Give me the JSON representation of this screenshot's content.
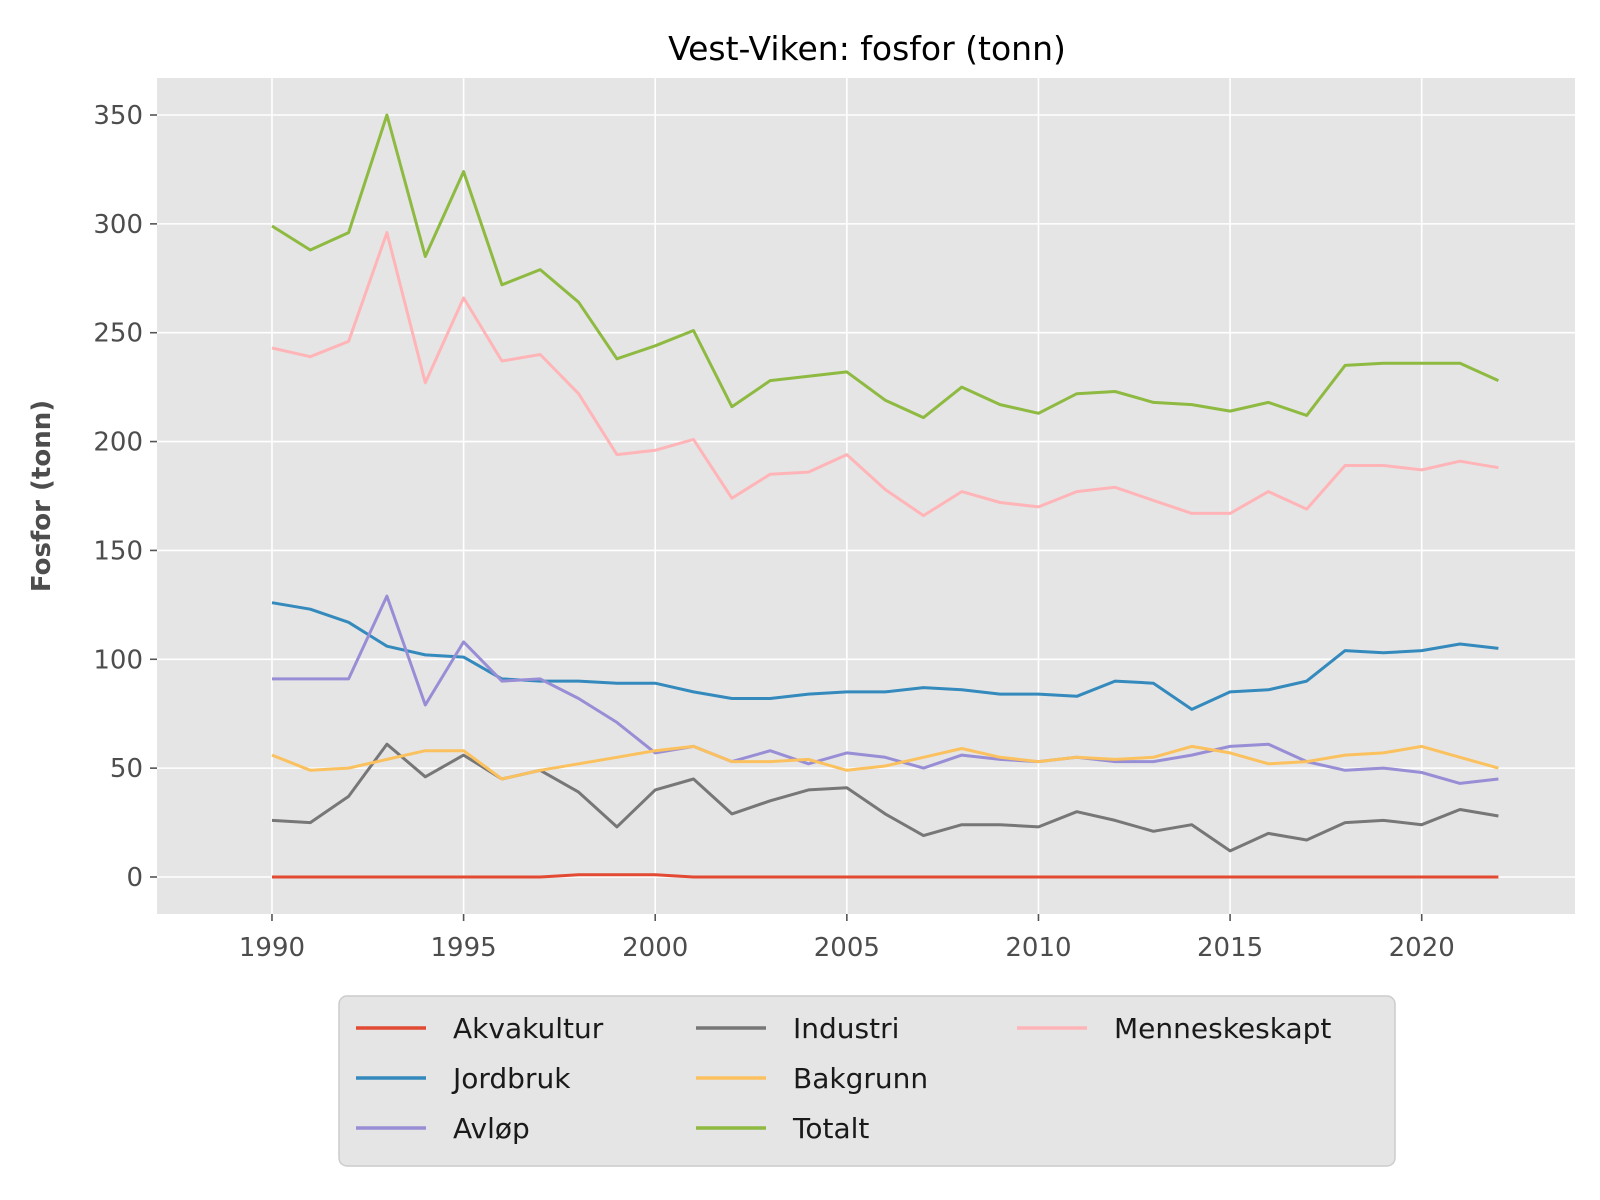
{
  "chart_data": {
    "type": "line",
    "title": "Vest-Viken: fosfor (tonn)",
    "xlabel": "",
    "ylabel": "Fosfor (tonn)",
    "xlim": [
      1987,
      2024
    ],
    "ylim": [
      -17,
      367
    ],
    "xticks": [
      1990,
      1995,
      2000,
      2005,
      2010,
      2015,
      2020
    ],
    "yticks": [
      0,
      50,
      100,
      150,
      200,
      250,
      300,
      350
    ],
    "grid": true,
    "legend_position": "bottom-center, outside plot, 3 columns",
    "x": [
      1990,
      1991,
      1992,
      1993,
      1994,
      1995,
      1996,
      1997,
      1998,
      1999,
      2000,
      2001,
      2002,
      2003,
      2004,
      2005,
      2006,
      2007,
      2008,
      2009,
      2010,
      2011,
      2012,
      2013,
      2014,
      2015,
      2016,
      2017,
      2018,
      2019,
      2020,
      2021,
      2022
    ],
    "series": [
      {
        "name": "Akvakultur",
        "color": "#E24A33",
        "values": [
          0,
          0,
          0,
          0,
          0,
          0,
          0,
          0,
          1,
          1,
          1,
          0,
          0,
          0,
          0,
          0,
          0,
          0,
          0,
          0,
          0,
          0,
          0,
          0,
          0,
          0,
          0,
          0,
          0,
          0,
          0,
          0,
          0
        ]
      },
      {
        "name": "Jordbruk",
        "color": "#348ABD",
        "values": [
          126,
          123,
          117,
          106,
          102,
          101,
          91,
          90,
          90,
          89,
          89,
          85,
          82,
          82,
          84,
          85,
          85,
          87,
          86,
          84,
          84,
          83,
          90,
          89,
          77,
          85,
          86,
          90,
          104,
          103,
          104,
          107,
          105
        ]
      },
      {
        "name": "Avløp",
        "color": "#988ED5",
        "values": [
          91,
          91,
          91,
          129,
          79,
          108,
          90,
          91,
          82,
          71,
          57,
          60,
          53,
          58,
          52,
          57,
          55,
          50,
          56,
          54,
          53,
          55,
          53,
          53,
          56,
          60,
          61,
          53,
          49,
          50,
          48,
          43,
          45
        ]
      },
      {
        "name": "Industri",
        "color": "#777777",
        "values": [
          26,
          25,
          37,
          61,
          46,
          56,
          45,
          49,
          39,
          23,
          40,
          45,
          29,
          35,
          40,
          41,
          29,
          19,
          24,
          24,
          23,
          30,
          26,
          21,
          24,
          12,
          20,
          17,
          25,
          26,
          24,
          31,
          28
        ]
      },
      {
        "name": "Bakgrunn",
        "color": "#FBC15E",
        "values": [
          56,
          49,
          50,
          54,
          58,
          58,
          45,
          49,
          52,
          55,
          58,
          60,
          53,
          53,
          54,
          49,
          51,
          55,
          59,
          55,
          53,
          55,
          54,
          55,
          60,
          57,
          52,
          53,
          56,
          57,
          60,
          55,
          50
        ]
      },
      {
        "name": "Totalt",
        "color": "#8EBA42",
        "values": [
          299,
          288,
          296,
          350,
          285,
          324,
          272,
          279,
          264,
          238,
          244,
          251,
          216,
          228,
          230,
          232,
          219,
          211,
          225,
          217,
          213,
          222,
          223,
          218,
          217,
          214,
          218,
          212,
          235,
          236,
          236,
          236,
          228
        ]
      },
      {
        "name": "Menneskeskapt",
        "color": "#FFB5B8",
        "values": [
          243,
          239,
          246,
          296,
          227,
          266,
          237,
          240,
          222,
          194,
          196,
          201,
          174,
          185,
          186,
          194,
          178,
          166,
          177,
          172,
          170,
          177,
          179,
          173,
          167,
          167,
          177,
          169,
          189,
          189,
          187,
          191,
          188
        ]
      }
    ]
  }
}
